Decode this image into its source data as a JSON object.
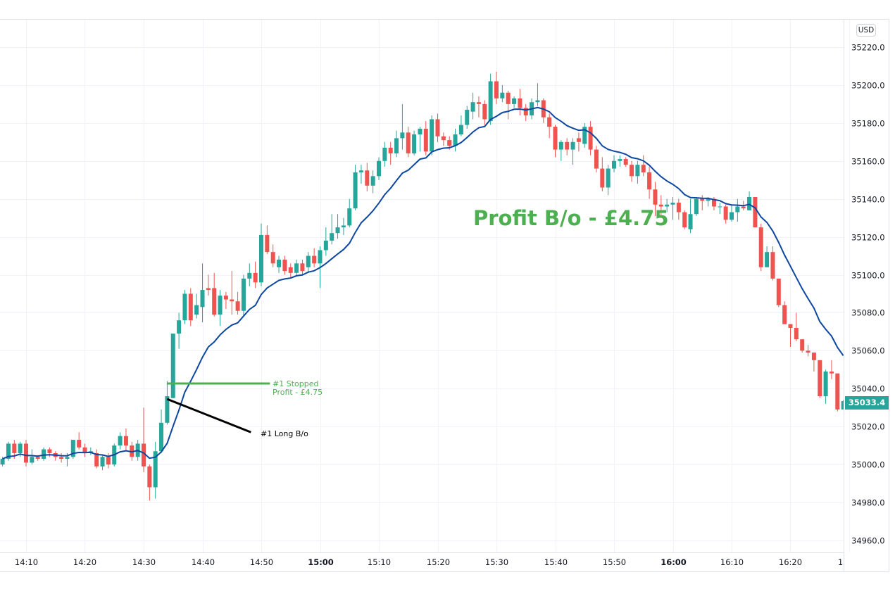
{
  "chart_data": {
    "type": "candlestick",
    "currency_badge": "USD",
    "start_time": "14:06",
    "interval_minutes": 1,
    "ylim": [
      34950,
      35230
    ],
    "y_ticks": [
      35220,
      35200,
      35180,
      35160,
      35140,
      35120,
      35100,
      35080,
      35060,
      35040,
      35020,
      35000,
      34980,
      34960
    ],
    "x_ticks": [
      {
        "label": "14:10",
        "bold": false
      },
      {
        "label": "14:20",
        "bold": false
      },
      {
        "label": "14:30",
        "bold": false
      },
      {
        "label": "14:40",
        "bold": false
      },
      {
        "label": "14:50",
        "bold": false
      },
      {
        "label": "15:00",
        "bold": true
      },
      {
        "label": "15:10",
        "bold": false
      },
      {
        "label": "15:20",
        "bold": false
      },
      {
        "label": "15:30",
        "bold": false
      },
      {
        "label": "15:40",
        "bold": false
      },
      {
        "label": "15:50",
        "bold": false
      },
      {
        "label": "16:00",
        "bold": true
      },
      {
        "label": "16:10",
        "bold": false
      },
      {
        "label": "16:20",
        "bold": false
      },
      {
        "label": "16:30",
        "bold": false
      }
    ],
    "grid": true,
    "last_price": "35033.4",
    "colors": {
      "up": "#26a69a",
      "down": "#ef5350",
      "moving_average": "#0d47a1",
      "annotation_green": "#4caf50",
      "annotation_black": "#000000"
    },
    "ohlc_fields": [
      "open",
      "high",
      "low",
      "close"
    ],
    "candles": [
      [
        35000,
        35004,
        34999,
        35003
      ],
      [
        35003,
        35012,
        35002,
        35011
      ],
      [
        35011,
        35013,
        35003,
        35006
      ],
      [
        35006,
        35012,
        35004,
        35011
      ],
      [
        35011,
        35013,
        34999,
        35001
      ],
      [
        35001,
        35008,
        35000,
        35004
      ],
      [
        35004,
        35005,
        35002,
        35003
      ],
      [
        35003,
        35009,
        35002,
        35008
      ],
      [
        35008,
        35009,
        35004,
        35006
      ],
      [
        35006,
        35007,
        35002,
        35004
      ],
      [
        35004,
        35006,
        35001,
        35003
      ],
      [
        35003,
        35006,
        34999,
        35004
      ],
      [
        35004,
        35013,
        35003,
        35013
      ],
      [
        35013,
        35017,
        35008,
        35009
      ],
      [
        35009,
        35011,
        35004,
        35006
      ],
      [
        35006,
        35009,
        35005,
        35007
      ],
      [
        35006,
        35008,
        34998,
        34999
      ],
      [
        34999,
        35005,
        34997,
        35004
      ],
      [
        35004,
        35006,
        34998,
        35000
      ],
      [
        35000,
        35011,
        34999,
        35010
      ],
      [
        35010,
        35017,
        35008,
        35015
      ],
      [
        35015,
        35019,
        35007,
        35010
      ],
      [
        35010,
        35012,
        35002,
        35004
      ],
      [
        35004,
        35013,
        35002,
        35011
      ],
      [
        35011,
        35030,
        34996,
        34999
      ],
      [
        34999,
        35000,
        34981,
        34988
      ],
      [
        34988,
        35012,
        34982,
        35007
      ],
      [
        35007,
        35029,
        35006,
        35022
      ],
      [
        35022,
        35044,
        35021,
        35036
      ],
      [
        35035,
        35069,
        35035,
        35069
      ],
      [
        35069,
        35080,
        35061,
        35076
      ],
      [
        35076,
        35092,
        35074,
        35090
      ],
      [
        35090,
        35093,
        35073,
        35076
      ],
      [
        35079,
        35090,
        35077,
        35084
      ],
      [
        35083,
        35106,
        35075,
        35092
      ],
      [
        35093,
        35100,
        35089,
        35092
      ],
      [
        35093,
        35101,
        35078,
        35079
      ],
      [
        35079,
        35092,
        35073,
        35089
      ],
      [
        35089,
        35091,
        35082,
        35087
      ],
      [
        35087,
        35102,
        35079,
        35086
      ],
      [
        35086,
        35091,
        35079,
        35081
      ],
      [
        35081,
        35100,
        35078,
        35098
      ],
      [
        35098,
        35106,
        35094,
        35101
      ],
      [
        35101,
        35107,
        35093,
        35096
      ],
      [
        35096,
        35127,
        35094,
        35121
      ],
      [
        35121,
        35126,
        35111,
        35112
      ],
      [
        35112,
        35116,
        35104,
        35106
      ],
      [
        35104,
        35110,
        35101,
        35108
      ],
      [
        35108,
        35110,
        35100,
        35102
      ],
      [
        35104,
        35106,
        35098,
        35101
      ],
      [
        35101,
        35108,
        35099,
        35106
      ],
      [
        35106,
        35108,
        35100,
        35102
      ],
      [
        35104,
        35112,
        35101,
        35110
      ],
      [
        35110,
        35114,
        35104,
        35106
      ],
      [
        35106,
        35115,
        35093,
        35113
      ],
      [
        35113,
        35125,
        35110,
        35118
      ],
      [
        35118,
        35132,
        35116,
        35122
      ],
      [
        35122,
        35132,
        35119,
        35125
      ],
      [
        35125,
        35130,
        35121,
        35126
      ],
      [
        35126,
        35140,
        35125,
        35135
      ],
      [
        35135,
        35158,
        35134,
        35154
      ],
      [
        35154,
        35158,
        35148,
        35155
      ],
      [
        35155,
        35159,
        35144,
        35147
      ],
      [
        35147,
        35155,
        35143,
        35152
      ],
      [
        35152,
        35162,
        35150,
        35160
      ],
      [
        35160,
        35170,
        35157,
        35167
      ],
      [
        35167,
        35170,
        35158,
        35164
      ],
      [
        35164,
        35176,
        35162,
        35172
      ],
      [
        35172,
        35190,
        35166,
        35175
      ],
      [
        35175,
        35178,
        35162,
        35164
      ],
      [
        35164,
        35176,
        35163,
        35174
      ],
      [
        35174,
        35178,
        35165,
        35177
      ],
      [
        35177,
        35181,
        35163,
        35165
      ],
      [
        35165,
        35184,
        35163,
        35182
      ],
      [
        35182,
        35185,
        35170,
        35173
      ],
      [
        35173,
        35175,
        35168,
        35171
      ],
      [
        35171,
        35173,
        35166,
        35168
      ],
      [
        35168,
        35177,
        35165,
        35174
      ],
      [
        35174,
        35184,
        35173,
        35179
      ],
      [
        35179,
        35189,
        35177,
        35187
      ],
      [
        35186,
        35196,
        35182,
        35191
      ],
      [
        35191,
        35194,
        35183,
        35190
      ],
      [
        35190,
        35192,
        35179,
        35182
      ],
      [
        35181,
        35206,
        35179,
        35202
      ],
      [
        35202,
        35207,
        35190,
        35193
      ],
      [
        35193,
        35200,
        35191,
        35196
      ],
      [
        35196,
        35197,
        35182,
        35190
      ],
      [
        35190,
        35194,
        35188,
        35193
      ],
      [
        35193,
        35198,
        35184,
        35188
      ],
      [
        35188,
        35190,
        35181,
        35184
      ],
      [
        35184,
        35193,
        35182,
        35191
      ],
      [
        35191,
        35201,
        35189,
        35192
      ],
      [
        35192,
        35193,
        35180,
        35183
      ],
      [
        35183,
        35185,
        35172,
        35178
      ],
      [
        35178,
        35179,
        35162,
        35166
      ],
      [
        35166,
        35171,
        35160,
        35170
      ],
      [
        35170,
        35172,
        35163,
        35166
      ],
      [
        35166,
        35172,
        35158,
        35170
      ],
      [
        35172,
        35175,
        35165,
        35170
      ],
      [
        35169,
        35180,
        35167,
        35178
      ],
      [
        35178,
        35181,
        35163,
        35166
      ],
      [
        35166,
        35168,
        35154,
        35156
      ],
      [
        35156,
        35162,
        35144,
        35146
      ],
      [
        35146,
        35158,
        35142,
        35156
      ],
      [
        35156,
        35163,
        35154,
        35160
      ],
      [
        35160,
        35163,
        35157,
        35161
      ],
      [
        35161,
        35162,
        35157,
        35158
      ],
      [
        35158,
        35160,
        35149,
        35152
      ],
      [
        35152,
        35160,
        35148,
        35158
      ],
      [
        35158,
        35163,
        35152,
        35154
      ],
      [
        35154,
        35157,
        35140,
        35145
      ],
      [
        35145,
        35149,
        35131,
        35137
      ],
      [
        35137,
        35142,
        35131,
        35136
      ],
      [
        35136,
        35140,
        35133,
        35137
      ],
      [
        35137,
        35141,
        35129,
        35138
      ],
      [
        35138,
        35140,
        35129,
        35133
      ],
      [
        35133,
        35134,
        35124,
        35125
      ],
      [
        35124,
        35140,
        35122,
        35132
      ],
      [
        35132,
        35141,
        35131,
        35140
      ],
      [
        35140,
        35142,
        35134,
        35139
      ],
      [
        35139,
        35141,
        35136,
        35140
      ],
      [
        35140,
        35141,
        35134,
        35136
      ],
      [
        35136,
        35138,
        35132,
        35136
      ],
      [
        35136,
        35137,
        35127,
        35129
      ],
      [
        35129,
        35137,
        35128,
        35133
      ],
      [
        35133,
        35140,
        35128,
        35136
      ],
      [
        35136,
        35139,
        35134,
        35135
      ],
      [
        35134,
        35144,
        35134,
        35141
      ],
      [
        35141,
        35141,
        35125,
        35125
      ],
      [
        35125,
        35127,
        35102,
        35104
      ],
      [
        35104,
        35115,
        35104,
        35112
      ],
      [
        35112,
        35115,
        35097,
        35098
      ],
      [
        35098,
        35098,
        35083,
        35084
      ],
      [
        35084,
        35086,
        35074,
        35074
      ],
      [
        35074,
        35074,
        35062,
        35072
      ],
      [
        35072,
        35080,
        35065,
        35066
      ],
      [
        35066,
        35066,
        35059,
        35060
      ],
      [
        35060,
        35063,
        35057,
        35059
      ],
      [
        35059,
        35059,
        35049,
        35055
      ],
      [
        35055,
        35055,
        35035,
        35036
      ],
      [
        35036,
        35050,
        35032,
        35049
      ],
      [
        35049,
        35055,
        35045,
        35048
      ],
      [
        35048,
        35048,
        35028,
        35029
      ],
      [
        35029,
        35034,
        35029,
        35033.4
      ]
    ],
    "annotations": {
      "profit_title": "Profit B/o - £4.75",
      "stopped_line": {
        "price": 35042.7,
        "from_time": "14:34",
        "to_time": "14:51"
      },
      "stopped_label_line1": "#1 Stopped",
      "stopped_label_line2": "Profit - £4.75",
      "long_line": {
        "from_time": "14:34",
        "from_price": 35034.5,
        "to_time": "14:48",
        "to_price": 35017
      },
      "long_label": "#1 Long B/o"
    }
  }
}
